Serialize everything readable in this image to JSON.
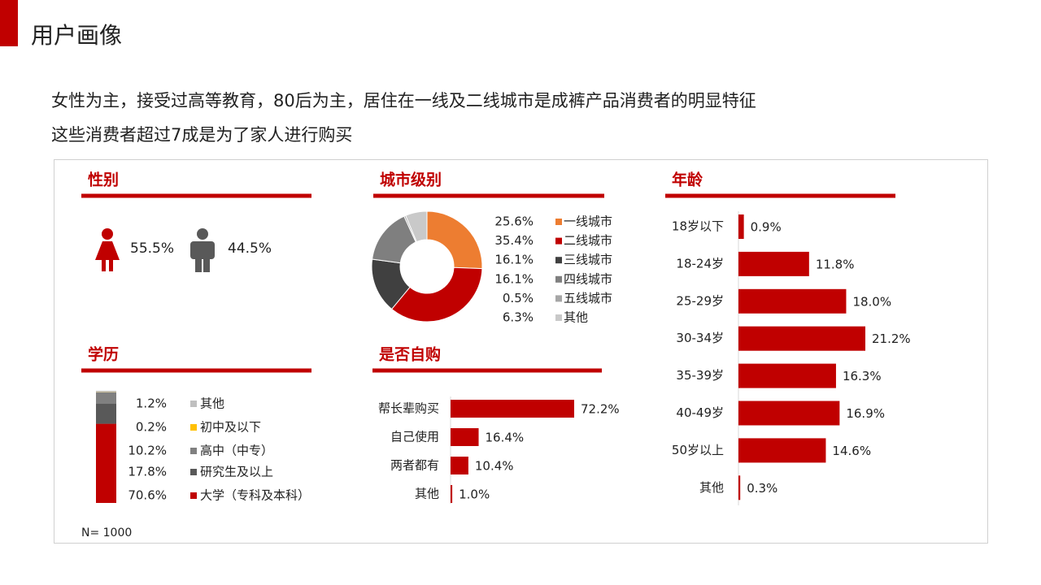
{
  "title": "用户画像",
  "subtitle": [
    "女性为主，接受过高等教育，80后为主，居住在一线及二线城市是成裤产品消费者的明显特征",
    "这些消费者超过7成是为了家人进行购买"
  ],
  "note": "N= 1000",
  "chart_data": [
    {
      "type": "pictogram",
      "title": "性别",
      "values": [
        55.5,
        44.5
      ],
      "value_labels": [
        "55.5%",
        "44.5%"
      ],
      "colors": [
        "#C00000",
        "#595959"
      ]
    },
    {
      "type": "donut",
      "title": "城市级别",
      "categories": [
        "一线城市",
        "二线城市",
        "三线城市",
        "四线城市",
        "五线城市",
        "其他"
      ],
      "values": [
        25.6,
        35.4,
        16.1,
        16.1,
        0.5,
        6.3
      ],
      "value_labels": [
        "25.6%",
        "35.4%",
        "16.1%",
        "16.1%",
        "0.5%",
        "6.3%"
      ],
      "colors": [
        "#ED7D31",
        "#C00000",
        "#404040",
        "#7F7F7F",
        "#A6A6A6",
        "#C9C9C9"
      ]
    },
    {
      "type": "bar",
      "title": "年龄",
      "categories": [
        "18岁以下",
        "18-24岁",
        "25-29岁",
        "30-34岁",
        "35-39岁",
        "40-49岁",
        "50岁以上",
        "其他"
      ],
      "values": [
        0.9,
        11.8,
        18.0,
        21.2,
        16.3,
        16.9,
        14.6,
        0.3
      ],
      "value_labels": [
        "0.9%",
        "11.8%",
        "18.0%",
        "21.2%",
        "16.3%",
        "16.9%",
        "14.6%",
        "0.3%"
      ],
      "color": "#C00000"
    },
    {
      "type": "stacked-bar",
      "title": "学历",
      "series": [
        {
          "name": "其他",
          "color": "#BFBFBF",
          "values": [
            1.2
          ],
          "value_labels": [
            "1.2%"
          ]
        },
        {
          "name": "初中及以下",
          "color": "#FFC000",
          "values": [
            0.2
          ],
          "value_labels": [
            "0.2%"
          ]
        },
        {
          "name": "高中（中专）",
          "color": "#808080",
          "values": [
            10.2
          ],
          "value_labels": [
            "10.2%"
          ]
        },
        {
          "name": "研究生及以上",
          "color": "#595959",
          "values": [
            17.8
          ],
          "value_labels": [
            "17.8%"
          ]
        },
        {
          "name": "大学（专科及本科）",
          "color": "#C00000",
          "values": [
            70.6
          ],
          "value_labels": [
            "70.6%"
          ]
        }
      ]
    },
    {
      "type": "bar",
      "title": "是否自购",
      "categories": [
        "帮长辈购买",
        "自己使用",
        "两者都有",
        "其他"
      ],
      "values": [
        72.2,
        16.4,
        10.4,
        1.0
      ],
      "value_labels": [
        "72.2%",
        "16.4%",
        "10.4%",
        "1.0%"
      ],
      "color": "#C00000"
    }
  ]
}
